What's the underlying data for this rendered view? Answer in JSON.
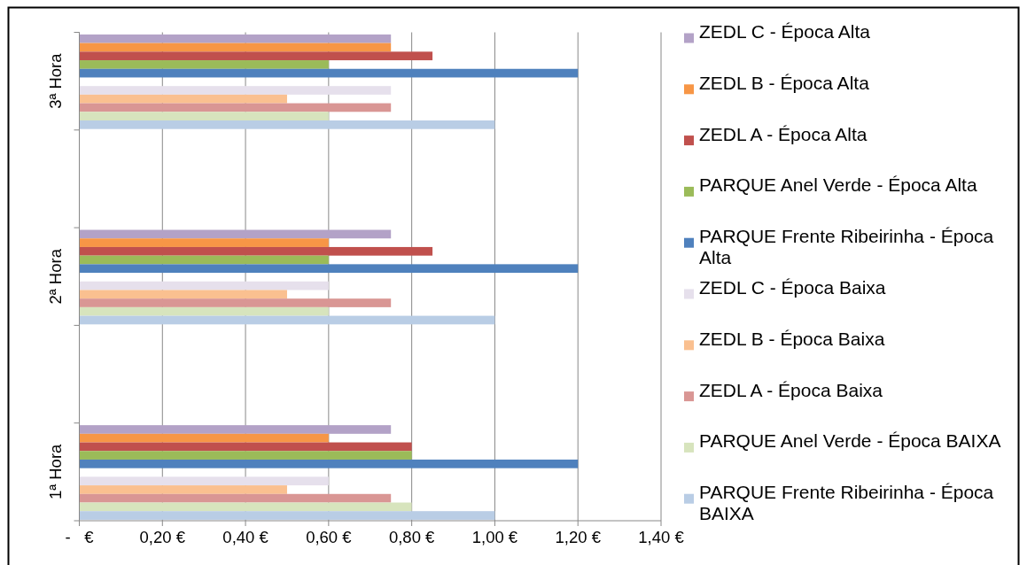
{
  "chart_data": {
    "type": "bar",
    "orientation": "horizontal",
    "categories": [
      "3ª Hora",
      null,
      "2ª Hora",
      null,
      "1ª Hora"
    ],
    "series": [
      {
        "name": "ZEDL C - Época Alta",
        "color": "#b3a2c7",
        "values": [
          0.75,
          null,
          0.75,
          null,
          0.75
        ]
      },
      {
        "name": "ZEDL B - Época Alta",
        "color": "#f79646",
        "values": [
          0.75,
          null,
          0.6,
          null,
          0.6
        ]
      },
      {
        "name": "ZEDL A - Época Alta",
        "color": "#c0504d",
        "values": [
          0.85,
          null,
          0.85,
          null,
          0.8
        ]
      },
      {
        "name": "PARQUE Anel Verde - Época Alta",
        "color": "#9bbb59",
        "values": [
          0.6,
          null,
          0.6,
          null,
          0.8
        ]
      },
      {
        "name": "PARQUE Frente Ribeirinha - Época Alta",
        "color": "#4f81bd",
        "values": [
          1.2,
          null,
          1.2,
          null,
          1.2
        ]
      },
      {
        "name": "ZEDL C - Época Baixa",
        "color": "#e6e0ec",
        "values": [
          0.75,
          null,
          0.6,
          null,
          0.6
        ]
      },
      {
        "name": "ZEDL B - Época Baixa",
        "color": "#fac090",
        "values": [
          0.5,
          null,
          0.5,
          null,
          0.5
        ]
      },
      {
        "name": "ZEDL A - Época Baixa",
        "color": "#d99694",
        "values": [
          0.75,
          null,
          0.75,
          null,
          0.75
        ]
      },
      {
        "name": "PARQUE Anel Verde - Época BAIXA",
        "color": "#d7e4bd",
        "values": [
          0.6,
          null,
          0.6,
          null,
          0.8
        ]
      },
      {
        "name": "PARQUE Frente Ribeirinha - Época BAIXA",
        "color": "#b9cde5",
        "values": [
          1.0,
          null,
          1.0,
          null,
          1.0
        ]
      }
    ],
    "xlim": [
      0,
      1.4
    ],
    "xticks": [
      {
        "value": 0,
        "label": "-   €"
      },
      {
        "value": 0.2,
        "label": "0,20 €"
      },
      {
        "value": 0.4,
        "label": "0,40 €"
      },
      {
        "value": 0.6,
        "label": "0,60 €"
      },
      {
        "value": 0.8,
        "label": "0,80 €"
      },
      {
        "value": 1.0,
        "label": "1,00 €"
      },
      {
        "value": 1.2,
        "label": "1,20 €"
      },
      {
        "value": 1.4,
        "label": "1,40 €"
      }
    ],
    "grid": "x",
    "legend": "right"
  }
}
